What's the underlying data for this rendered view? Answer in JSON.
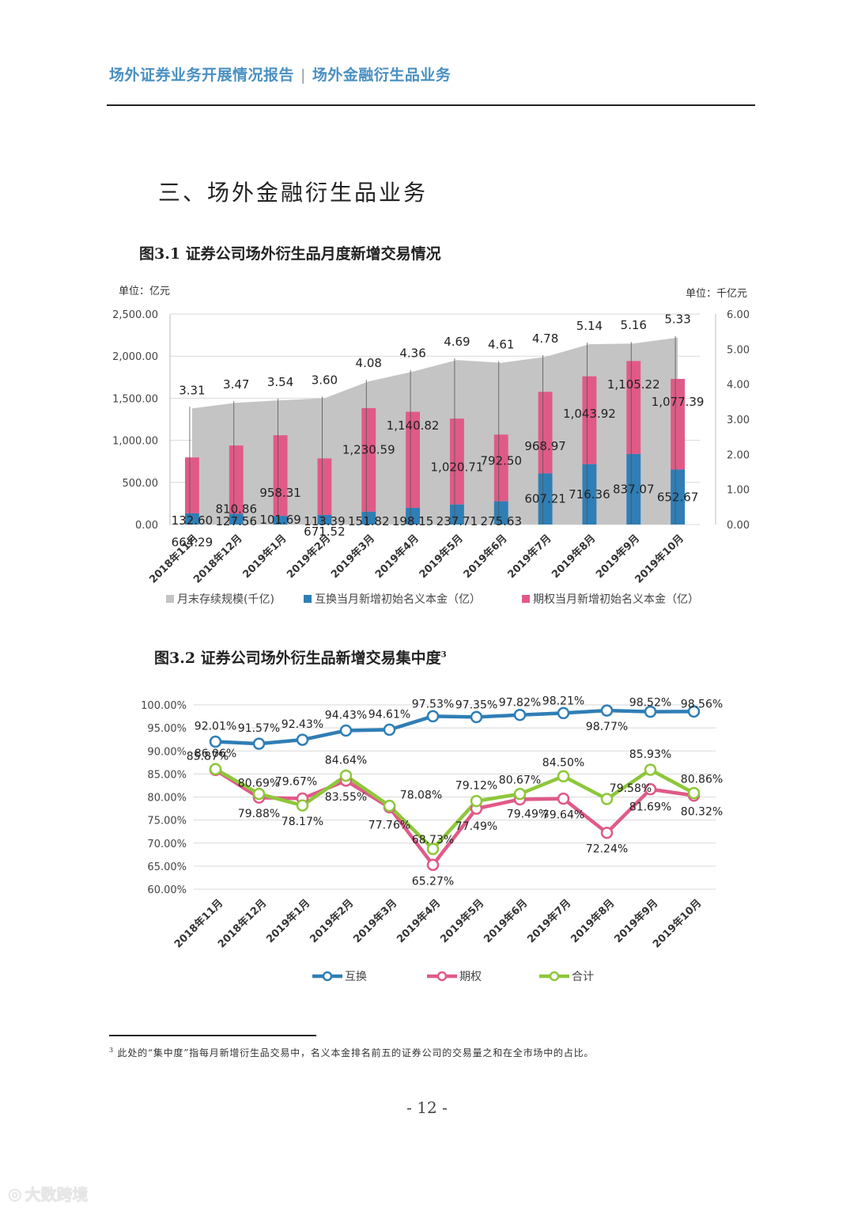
{
  "header": {
    "left": "场外证券业务开展情况报告",
    "sep": "|",
    "right": "场外金融衍生品业务"
  },
  "section_title": "三、场外金融衍生品业务",
  "fig1_title": "图3.1 证券公司场外衍生品月度新增交易情况",
  "fig2_title": "图3.2 证券公司场外衍生品新增交易集中度",
  "fig2_sup": "3",
  "footnote": {
    "sup": "3",
    "text": "此处的“集中度”指每月新增衍生品交易中，名义本金排名前五的证券公司的交易量之和在全市场中的占比。"
  },
  "page_number": "- 12 -",
  "watermark": "大数跨境",
  "colors": {
    "blue": "#2f7eb6",
    "pink": "#e05a87",
    "gray": "#c4c4c4",
    "green": "#8ec73a"
  },
  "chart_data": [
    {
      "type": "bar",
      "title": "图3.1 证券公司场外衍生品月度新增交易情况",
      "unit_left": "单位：亿元",
      "unit_right": "单位：千亿元",
      "categories": [
        "2018年11月",
        "2018年12月",
        "2019年1月",
        "2019年2月",
        "2019年3月",
        "2019年4月",
        "2019年5月",
        "2019年6月",
        "2019年7月",
        "2019年8月",
        "2019年9月",
        "2019年10月"
      ],
      "ylim_left": [
        0,
        2500
      ],
      "yticks_left": [
        "0.00",
        "500.00",
        "1,000.00",
        "1,500.00",
        "2,000.00",
        "2,500.00"
      ],
      "ylim_right": [
        0,
        6
      ],
      "yticks_right": [
        "0.00",
        "1.00",
        "2.00",
        "3.00",
        "4.00",
        "5.00",
        "6.00"
      ],
      "series": [
        {
          "name": "月末存续规模(千亿)",
          "kind": "area",
          "axis": "right",
          "values": [
            3.31,
            3.47,
            3.54,
            3.6,
            4.08,
            4.36,
            4.69,
            4.61,
            4.78,
            5.14,
            5.16,
            5.33
          ],
          "labels": [
            "3.31",
            "3.47",
            "3.54",
            "3.60",
            "4.08",
            "4.36",
            "4.69",
            "4.61",
            "4.78",
            "5.14",
            "5.16",
            "5.33"
          ]
        },
        {
          "name": "互换当月新增初始名义本金（亿）",
          "kind": "bar",
          "axis": "left",
          "values": [
            132.6,
            127.56,
            101.69,
            113.39,
            151.82,
            198.15,
            237.71,
            275.63,
            607.21,
            716.36,
            837.07,
            652.67
          ],
          "labels": [
            "132.60",
            "127.56",
            "101.69",
            "113.39",
            "151.82",
            "198.15",
            "237.71",
            "275.63",
            "607.21",
            "716.36",
            "837.07",
            "652.67"
          ]
        },
        {
          "name": "期权当月新增初始名义本金（亿）",
          "kind": "bar",
          "axis": "left",
          "values": [
            664.29,
            810.86,
            958.31,
            671.52,
            1230.59,
            1140.82,
            1020.71,
            792.5,
            968.97,
            1043.92,
            1105.22,
            1077.39
          ],
          "labels": [
            "664.29",
            "810.86",
            "958.31",
            "671.52",
            "1,230.59",
            "1,140.82",
            "1,020.71",
            "792.50",
            "968.97",
            "1,043.92",
            "1,105.22",
            "1,077.39"
          ]
        }
      ]
    },
    {
      "type": "line",
      "title": "图3.2 证券公司场外衍生品新增交易集中度",
      "categories": [
        "2018年11月",
        "2018年12月",
        "2019年1月",
        "2019年2月",
        "2019年3月",
        "2019年4月",
        "2019年5月",
        "2019年6月",
        "2019年7月",
        "2019年8月",
        "2019年9月",
        "2019年10月"
      ],
      "ylim": [
        60,
        100
      ],
      "yticks": [
        "60.00%",
        "65.00%",
        "70.00%",
        "75.00%",
        "80.00%",
        "85.00%",
        "90.00%",
        "95.00%",
        "100.00%"
      ],
      "series": [
        {
          "name": "互换",
          "values": [
            92.01,
            91.57,
            92.43,
            94.43,
            94.61,
            97.53,
            97.35,
            97.82,
            98.21,
            98.77,
            98.52,
            98.56
          ],
          "labels": [
            "92.01%",
            "91.57%",
            "92.43%",
            "94.43%",
            "94.61%",
            "97.53%",
            "97.35%",
            "97.82%",
            "98.21%",
            "98.77%",
            "98.52%",
            "98.56%"
          ]
        },
        {
          "name": "期权",
          "values": [
            85.87,
            79.88,
            79.67,
            83.55,
            77.76,
            65.27,
            77.49,
            79.49,
            79.64,
            72.24,
            81.69,
            80.32
          ],
          "labels": [
            "85.87%",
            "79.88%",
            "79.67%",
            "83.55%",
            "77.76%",
            "65.27%",
            "77.49%",
            "79.49%",
            "79.64%",
            "72.24%",
            "81.69%",
            "80.32%"
          ]
        },
        {
          "name": "合计",
          "values": [
            86.06,
            80.69,
            78.17,
            84.64,
            78.08,
            68.73,
            79.12,
            80.67,
            84.5,
            79.58,
            85.93,
            80.86
          ],
          "labels": [
            "86.06%",
            "80.69%",
            "78.17%",
            "84.64%",
            "78.08%",
            "68.73%",
            "79.12%",
            "80.67%",
            "84.50%",
            "79.58%",
            "85.93%",
            "80.86%"
          ]
        }
      ]
    }
  ]
}
